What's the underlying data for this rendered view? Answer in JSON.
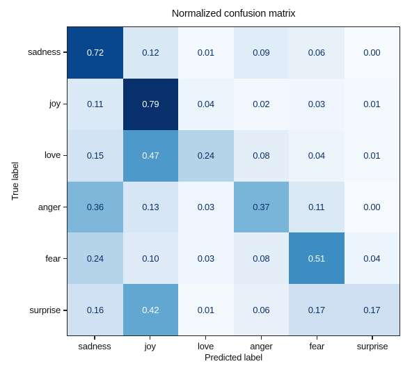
{
  "chart_data": {
    "type": "heatmap",
    "title": "Normalized confusion matrix",
    "xlabel": "Predicted label",
    "ylabel": "True label",
    "x_labels": [
      "sadness",
      "joy",
      "love",
      "anger",
      "fear",
      "surprise"
    ],
    "y_labels": [
      "sadness",
      "joy",
      "love",
      "anger",
      "fear",
      "surprise"
    ],
    "matrix": [
      [
        0.72,
        0.12,
        0.01,
        0.09,
        0.06,
        0.0
      ],
      [
        0.11,
        0.79,
        0.04,
        0.02,
        0.03,
        0.01
      ],
      [
        0.15,
        0.47,
        0.24,
        0.08,
        0.04,
        0.01
      ],
      [
        0.36,
        0.13,
        0.03,
        0.37,
        0.11,
        0.0
      ],
      [
        0.24,
        0.1,
        0.03,
        0.08,
        0.51,
        0.04
      ],
      [
        0.16,
        0.42,
        0.01,
        0.06,
        0.17,
        0.17
      ]
    ],
    "value_decimals": 2,
    "vmin": 0.0,
    "vmax": 0.79,
    "colormap": "Blues",
    "colormap_anchors": [
      "#f7fbff",
      "#deebf7",
      "#c6dbef",
      "#9ecae1",
      "#6baed6",
      "#4292c6",
      "#2171b5",
      "#08519c",
      "#08306b"
    ],
    "cell_text_dark": "#08306b",
    "cell_text_light": "#f7fbff",
    "colorbar": false,
    "grid": false,
    "legend": false
  }
}
